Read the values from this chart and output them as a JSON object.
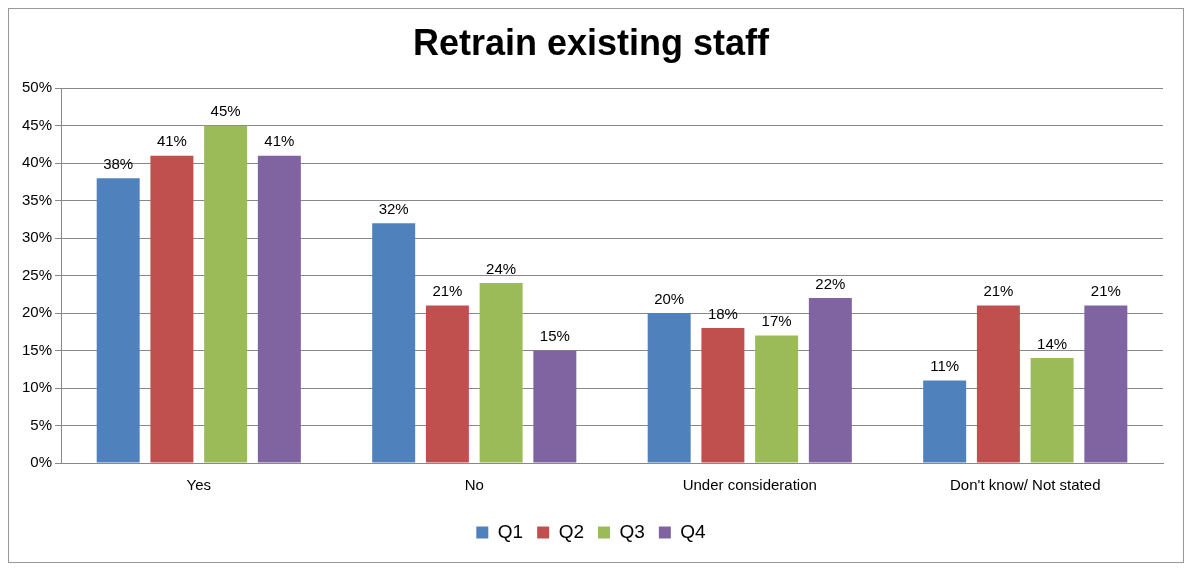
{
  "chart_data": {
    "type": "bar",
    "title": "Retrain existing staff",
    "categories": [
      "Yes",
      "No",
      "Under consideration",
      "Don't know/ Not stated"
    ],
    "series": [
      {
        "name": "Q1",
        "color": "#4f81bd",
        "values": [
          38,
          32,
          20,
          11
        ],
        "value_labels": [
          "38%",
          "32%",
          "20%",
          "11%"
        ]
      },
      {
        "name": "Q2",
        "color": "#c0504d",
        "values": [
          41,
          21,
          18,
          21
        ],
        "value_labels": [
          "41%",
          "21%",
          "18%",
          "21%"
        ]
      },
      {
        "name": "Q3",
        "color": "#9bbb59",
        "values": [
          45,
          24,
          17,
          14
        ],
        "value_labels": [
          "45%",
          "24%",
          "17%",
          "14%"
        ]
      },
      {
        "name": "Q4",
        "color": "#8064a2",
        "values": [
          41,
          15,
          22,
          21
        ],
        "value_labels": [
          "41%",
          "15%",
          "22%",
          "21%"
        ]
      }
    ],
    "ylim": [
      0,
      50
    ],
    "yticks": [
      {
        "value": 0,
        "label": "0%"
      },
      {
        "value": 5,
        "label": "5%"
      },
      {
        "value": 10,
        "label": "10%"
      },
      {
        "value": 15,
        "label": "15%"
      },
      {
        "value": 20,
        "label": "20%"
      },
      {
        "value": 25,
        "label": "25%"
      },
      {
        "value": 30,
        "label": "30%"
      },
      {
        "value": 35,
        "label": "35%"
      },
      {
        "value": 40,
        "label": "40%"
      },
      {
        "value": 45,
        "label": "45%"
      },
      {
        "value": 50,
        "label": "50%"
      }
    ],
    "grid": "y",
    "legend": "bottom"
  }
}
